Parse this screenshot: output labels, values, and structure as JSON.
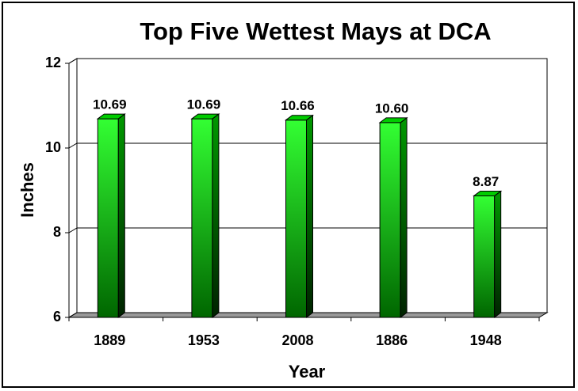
{
  "chart_data": {
    "type": "bar",
    "title": "Top Five Wettest Mays at DCA",
    "x_label": "Year",
    "y_label": "Inches",
    "categories": [
      "1889",
      "1953",
      "2008",
      "1886",
      "1948"
    ],
    "values": [
      10.69,
      10.69,
      10.66,
      10.6,
      8.87
    ],
    "value_labels": [
      "10.69",
      "10.69",
      "10.66",
      "10.60",
      "8.87"
    ],
    "color": "#00cc00",
    "ylim": [
      6,
      12
    ],
    "yticks": [
      6,
      8,
      10,
      12
    ],
    "grid": true
  }
}
